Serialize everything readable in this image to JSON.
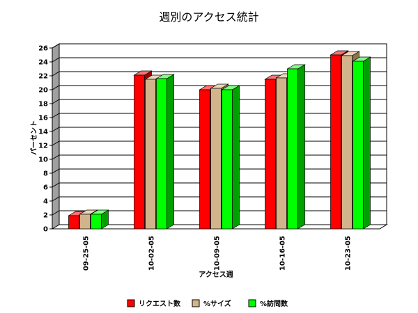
{
  "chart_data": {
    "type": "bar",
    "title": "週別のアクセス統計",
    "xlabel": "アクセス週",
    "ylabel": "パーセント",
    "ylim": [
      0,
      26
    ],
    "yticks": [
      0,
      2,
      4,
      6,
      8,
      10,
      12,
      14,
      16,
      18,
      20,
      22,
      24,
      26
    ],
    "grid": true,
    "legend_position": "bottom",
    "categories": [
      "09-25-05",
      "10-02-05",
      "10-09-05",
      "10-16-05",
      "10-23-05"
    ],
    "series": [
      {
        "name": "リクエスト数",
        "values": [
          1.9,
          22.1,
          20.0,
          21.5,
          25.0
        ],
        "color": "#ff0000",
        "side_color": "#a00000",
        "top_color": "#ff7070"
      },
      {
        "name": "%サイズ",
        "values": [
          2.1,
          21.5,
          20.2,
          21.7,
          24.9
        ],
        "color": "#d2b48c",
        "side_color": "#8c7250",
        "top_color": "#ecd6b8"
      },
      {
        "name": "%訪問数",
        "values": [
          2.1,
          21.6,
          20.0,
          23.0,
          24.1
        ],
        "color": "#00ff00",
        "side_color": "#00a000",
        "top_color": "#80ff80"
      }
    ]
  }
}
